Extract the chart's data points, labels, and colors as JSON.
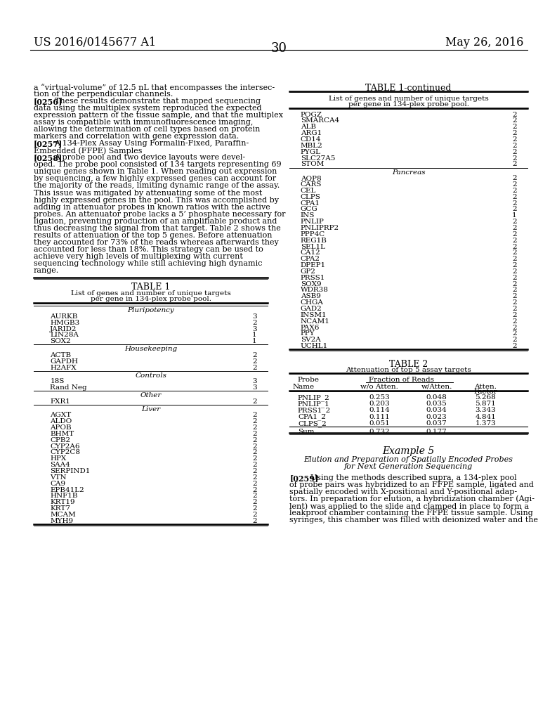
{
  "page_number": "30",
  "patent_number": "US 2016/0145677 A1",
  "patent_date": "May 26, 2016",
  "bg_color": "#ffffff",
  "left_column": {
    "intro_text": [
      "a “virtual-volume” of 12.5 nL that encompasses the intersec-",
      "tion of the perpendicular channels.",
      "[0256]    These results demonstrate that mapped sequencing",
      "data using the multiplex system reproduced the expected",
      "expression pattern of the tissue sample, and that the multiplex",
      "assay is compatible with immunofluorescence imaging,",
      "allowing the determination of cell types based on protein",
      "markers and correlation with gene expression data.",
      "[0257]    A 134-Plex Assay Using Formalin-Fixed, Paraffin-",
      "Embedded (FFPE) Samples",
      "[0258]    A probe pool and two device layouts were devel-",
      "oped. The probe pool consisted of 134 targets representing 69",
      "unique genes shown in Table 1. When reading out expression",
      "by sequencing, a few highly expressed genes can account for",
      "the majority of the reads, limiting dynamic range of the assay.",
      "This issue was mitigated by attenuating some of the most",
      "highly expressed genes in the pool. This was accomplished by",
      "adding in attenuator probes in known ratios with the active",
      "probes. An attenuator probe lacks a 5’ phosphate necessary for",
      "ligation, preventing production of an amplifiable product and",
      "thus decreasing the signal from that target. Table 2 shows the",
      "results of attenuation of the top 5 genes. Before attenuation",
      "they accounted for 73% of the reads whereas afterwards they",
      "accounted for less than 18%. This strategy can be used to",
      "achieve very high levels of multiplexing with current",
      "sequencing technology while still achieving high dynamic",
      "range."
    ],
    "table1_title": "TABLE 1",
    "table1_subtitle": [
      "List of genes and number of unique targets",
      "per gene in 134-plex probe pool."
    ],
    "table1_sections": [
      {
        "section_name": "Pluripotency",
        "genes": [
          [
            "AURKB",
            "3"
          ],
          [
            "HMGB3",
            "2"
          ],
          [
            "JARID2",
            "3"
          ],
          [
            "LIN28A",
            "1"
          ],
          [
            "SOX2",
            "1"
          ]
        ]
      },
      {
        "section_name": "Housekeeping",
        "genes": [
          [
            "ACTB",
            "2"
          ],
          [
            "GAPDH",
            "2"
          ],
          [
            "H2AFX",
            "2"
          ]
        ]
      },
      {
        "section_name": "Controls",
        "genes": [
          [
            "18S",
            "3"
          ],
          [
            "Rand Neg",
            "3"
          ]
        ]
      },
      {
        "section_name": "Other",
        "genes": [
          [
            "FXR1",
            "2"
          ]
        ]
      },
      {
        "section_name": "Liver",
        "genes": [
          [
            "AGXT",
            "2"
          ],
          [
            "ALDO",
            "2"
          ],
          [
            "APOB",
            "2"
          ],
          [
            "BHMT",
            "2"
          ],
          [
            "CPB2",
            "2"
          ],
          [
            "CYP2A6",
            "2"
          ],
          [
            "CYP2C8",
            "2"
          ],
          [
            "HPX",
            "2"
          ],
          [
            "SAA4",
            "2"
          ],
          [
            "SERPIND1",
            "2"
          ],
          [
            "VTN",
            "2"
          ],
          [
            "CA9",
            "2"
          ],
          [
            "EPB41L2",
            "2"
          ],
          [
            "HNF1B",
            "2"
          ],
          [
            "KRT19",
            "2"
          ],
          [
            "KRT7",
            "2"
          ],
          [
            "MCAM",
            "2"
          ],
          [
            "MYH9",
            "2"
          ]
        ]
      }
    ]
  },
  "right_column": {
    "table1cont_title": "TABLE 1-continued",
    "table1cont_subtitle": [
      "List of genes and number of unique targets",
      "per gene in 134-plex probe pool."
    ],
    "table1cont_sections": [
      {
        "section_name": null,
        "genes": [
          [
            "POGZ",
            "2"
          ],
          [
            "SMARCA4",
            "2"
          ],
          [
            "ALB",
            "2"
          ],
          [
            "ARG1",
            "2"
          ],
          [
            "CD14",
            "2"
          ],
          [
            "MBL2",
            "2"
          ],
          [
            "PYGL",
            "2"
          ],
          [
            "SLC27A5",
            "2"
          ],
          [
            "STOM",
            "2"
          ]
        ]
      },
      {
        "section_name": "Pancreas",
        "genes": [
          [
            "AQP8",
            "2"
          ],
          [
            "CARS",
            "2"
          ],
          [
            "CEL",
            "2"
          ],
          [
            "CLPS",
            "2"
          ],
          [
            "CPA1",
            "2"
          ],
          [
            "GCG",
            "2"
          ],
          [
            "INS",
            "1"
          ],
          [
            "PNLIP",
            "2"
          ],
          [
            "PNLIPRP2",
            "2"
          ],
          [
            "PPP4C",
            "2"
          ],
          [
            "REG1B",
            "2"
          ],
          [
            "SEL1L",
            "2"
          ],
          [
            "CA12",
            "2"
          ],
          [
            "CPA2",
            "2"
          ],
          [
            "DPEP1",
            "2"
          ],
          [
            "GP2",
            "2"
          ],
          [
            "PRSS1",
            "2"
          ],
          [
            "SOX9",
            "2"
          ],
          [
            "WDR38",
            "2"
          ],
          [
            "ASB9",
            "2"
          ],
          [
            "CHGA",
            "2"
          ],
          [
            "GAD2",
            "2"
          ],
          [
            "INSM1",
            "2"
          ],
          [
            "NCAM1",
            "2"
          ],
          [
            "PAX6",
            "2"
          ],
          [
            "PPY",
            "2"
          ],
          [
            "SV2A",
            "2"
          ],
          [
            "UCHL1",
            "2"
          ]
        ]
      }
    ],
    "table2_title": "TABLE 2",
    "table2_subtitle": "Attenuation of top 5 assay targets",
    "table2_rows": [
      [
        "PNLIP_2",
        "0.253",
        "0.048",
        "5.268"
      ],
      [
        "PNLIP_1",
        "0.203",
        "0.035",
        "5.871"
      ],
      [
        "PRSS1_2",
        "0.114",
        "0.034",
        "3.343"
      ],
      [
        "CPA1_2",
        "0.111",
        "0.023",
        "4.841"
      ],
      [
        "CLPS_2",
        "0.051",
        "0.037",
        "1.373"
      ]
    ],
    "table2_sum": [
      "Sum",
      "0.732",
      "0.177"
    ],
    "example5_title": "Example 5",
    "example5_subtitle": [
      "Elution and Preparation of Spatially Encoded Probes",
      "for Next Generation Sequencing"
    ],
    "example5_text": [
      "[0259]    Using the methods described supra, a 134-plex pool",
      "of probe pairs was hybridized to an FFPE sample, ligated and",
      "spatially encoded with X-positional and Y-positional adap-",
      "tors. In preparation for elution, a hybridization chamber (Agi-",
      "lent) was applied to the slide and clamped in place to form a",
      "leakproof chamber containing the FFPE tissue sample. Using",
      "syringes, this chamber was filled with deionized water and the"
    ]
  }
}
